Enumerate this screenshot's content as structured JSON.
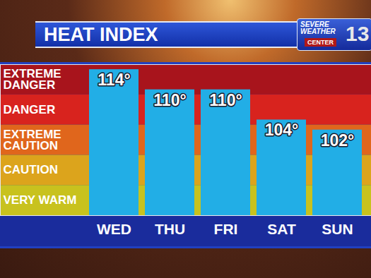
{
  "chart_data": {
    "type": "bar",
    "title": "HEAT INDEX",
    "annotations": [
      "SEVERE",
      "WEATHER",
      "CENTER",
      "13"
    ],
    "categories": [
      "WED",
      "THU",
      "FRI",
      "SAT",
      "SUN"
    ],
    "values": [
      114,
      110,
      110,
      104,
      102
    ],
    "value_labels": [
      "114°",
      "110°",
      "110°",
      "104°",
      "102°"
    ],
    "color": "#22aee6",
    "data_labels": true,
    "ylim": [
      85,
      115
    ],
    "yticks": [],
    "tick_labels": "x",
    "grid": false,
    "bands": [
      {
        "label": "EXTREME DANGER",
        "from": 109,
        "to": 115,
        "color": "#a8141c"
      },
      {
        "label": "DANGER",
        "from": 103,
        "to": 109,
        "color": "#d8231e"
      },
      {
        "label": "EXTREME CAUTION",
        "from": 97,
        "to": 103,
        "color": "#e0661c"
      },
      {
        "label": "CAUTION",
        "from": 91,
        "to": 97,
        "color": "#dca41c"
      },
      {
        "label": "VERY WARM",
        "from": 85,
        "to": 91,
        "color": "#c8c21e"
      }
    ]
  }
}
